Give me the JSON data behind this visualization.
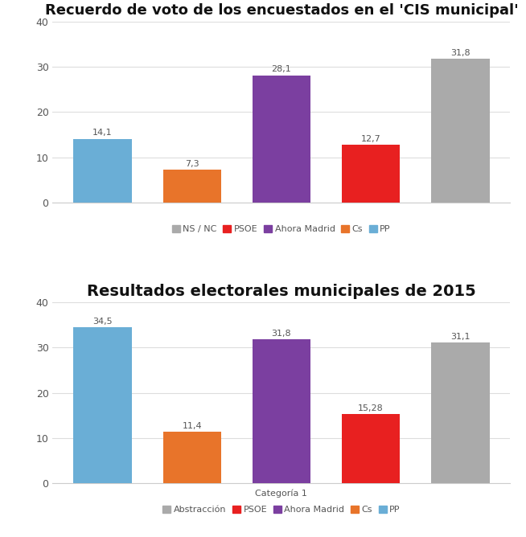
{
  "chart1": {
    "title": "Recuerdo de voto de los encuestados en el 'CIS municipal'",
    "values": [
      14.1,
      7.3,
      28.1,
      12.7,
      31.8
    ],
    "labels": [
      "14,1",
      "7,3",
      "28,1",
      "12,7",
      "31,8"
    ],
    "colors": [
      "#6aaed6",
      "#e8742a",
      "#7b3fa0",
      "#e82020",
      "#aaaaaa"
    ],
    "legend_labels": [
      "NS / NC",
      "PSOE",
      "Ahora Madrid",
      "Cs",
      "PP"
    ],
    "legend_colors": [
      "#aaaaaa",
      "#e82020",
      "#7b3fa0",
      "#e8742a",
      "#6aaed6"
    ],
    "ylim": [
      0,
      40
    ],
    "yticks": [
      0,
      10,
      20,
      30,
      40
    ]
  },
  "chart2": {
    "title": "Resultados electorales municipales de 2015",
    "values": [
      34.5,
      11.4,
      31.8,
      15.28,
      31.1
    ],
    "labels": [
      "34,5",
      "11,4",
      "31,8",
      "15,28",
      "31,1"
    ],
    "colors": [
      "#6aaed6",
      "#e8742a",
      "#7b3fa0",
      "#e82020",
      "#aaaaaa"
    ],
    "legend_labels": [
      "Abstracción",
      "PSOE",
      "Ahora Madrid",
      "Cs",
      "PP"
    ],
    "legend_colors": [
      "#aaaaaa",
      "#e82020",
      "#7b3fa0",
      "#e8742a",
      "#6aaed6"
    ],
    "xlabel": "Categoría 1",
    "ylim": [
      0,
      40
    ],
    "yticks": [
      0,
      10,
      20,
      30,
      40
    ]
  },
  "background_color": "#ffffff",
  "bar_width": 0.65,
  "title1_fontsize": 13,
  "title2_fontsize": 14,
  "label_fontsize": 8,
  "legend_fontsize": 8,
  "tick_fontsize": 9,
  "grid_color": "#dddddd",
  "spine_color": "#cccccc",
  "text_color": "#555555",
  "title_color": "#111111"
}
